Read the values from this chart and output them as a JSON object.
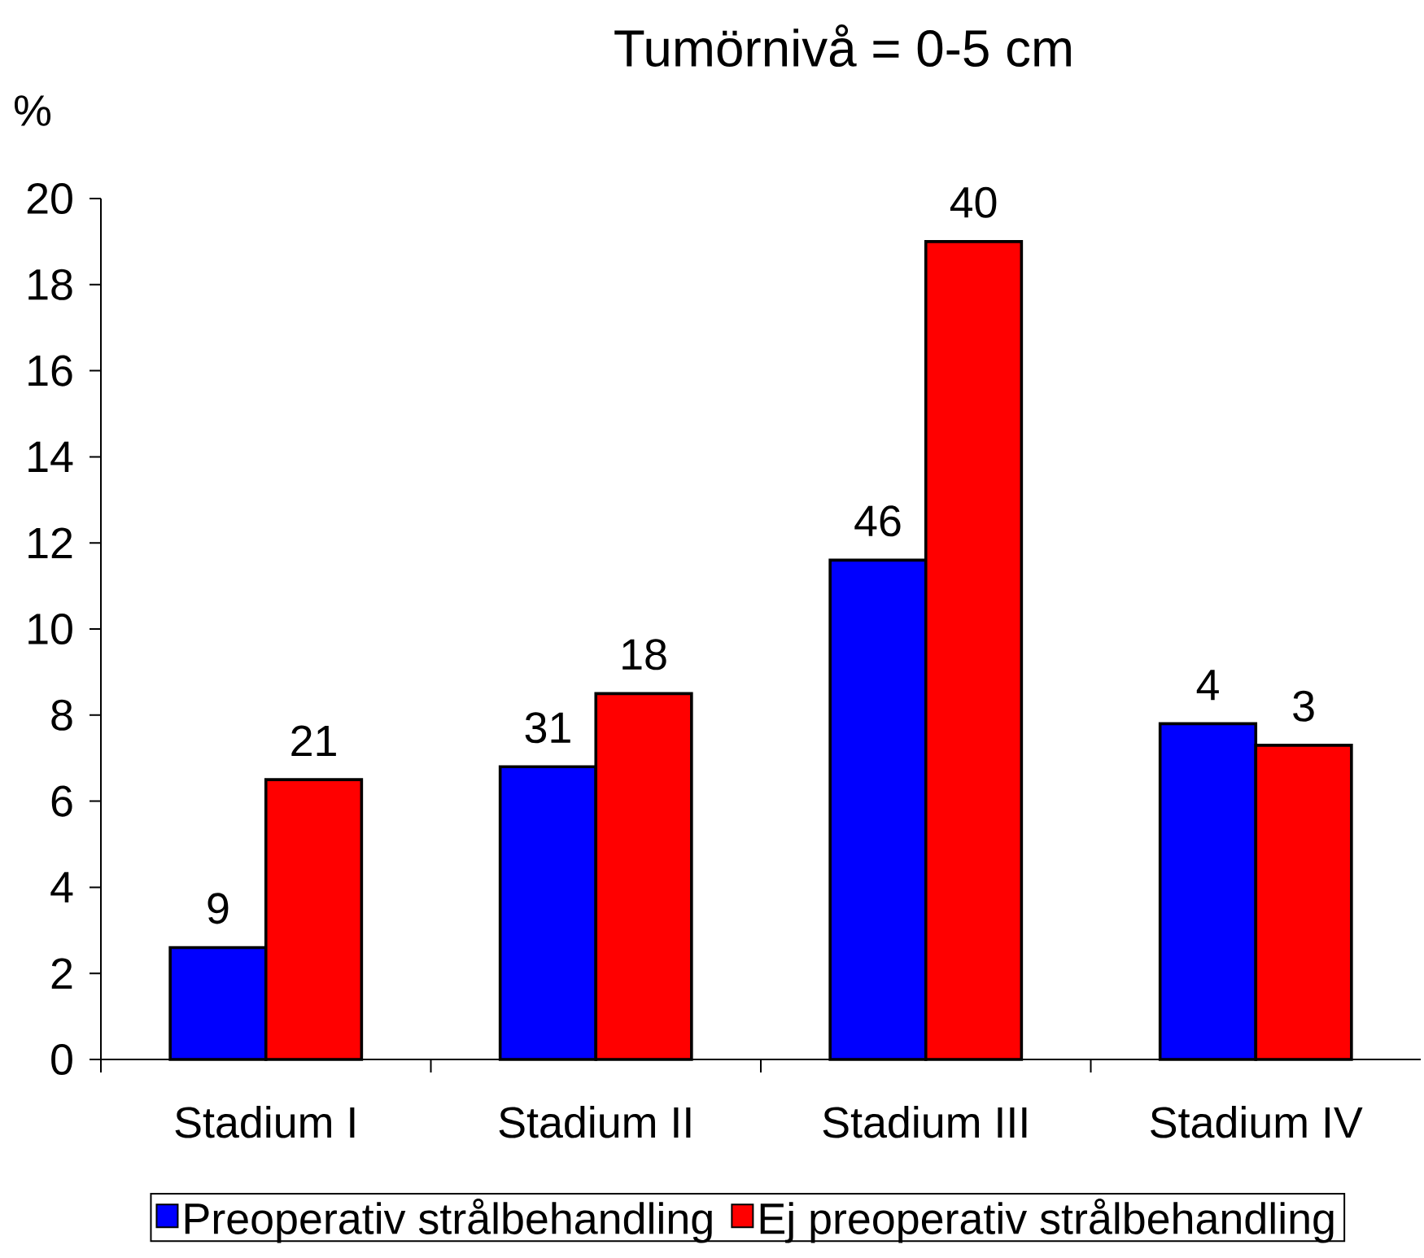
{
  "chart_data": {
    "type": "bar",
    "title": "Tumörnivå = 0-5 cm",
    "ylabel": "%",
    "categories": [
      "Stadium I",
      "Stadium II",
      "Stadium III",
      "Stadium IV"
    ],
    "series": [
      {
        "name": "Preoperativ strålbehandling",
        "color": "#0000ff",
        "values": [
          2.6,
          6.8,
          11.6,
          7.8
        ]
      },
      {
        "name": "Ej preoperativ strålbehandling",
        "color": "#ff0000",
        "values": [
          6.5,
          8.5,
          19.0,
          7.3
        ]
      }
    ],
    "annotations": [
      {
        "text": "9",
        "x": "Stadium I",
        "y": 2.6
      },
      {
        "text": "31",
        "x": "Stadium II",
        "y": 6.8
      },
      {
        "text": "46",
        "x": "Stadium III",
        "y": 11.6
      },
      {
        "text": "4",
        "x": "Stadium IV",
        "y": 7.8
      },
      {
        "text": "21",
        "x": "Stadium I",
        "y": 6.5
      },
      {
        "text": "18",
        "x": "Stadium II",
        "y": 8.5
      },
      {
        "text": "40",
        "x": "Stadium III",
        "y": 19.0
      },
      {
        "text": "3",
        "x": "Stadium IV",
        "y": 7.3
      }
    ],
    "ylim": [
      0,
      20
    ],
    "yticks": [
      0,
      2,
      4,
      6,
      8,
      10,
      12,
      14,
      16,
      18,
      20
    ],
    "legend": "bottom"
  }
}
